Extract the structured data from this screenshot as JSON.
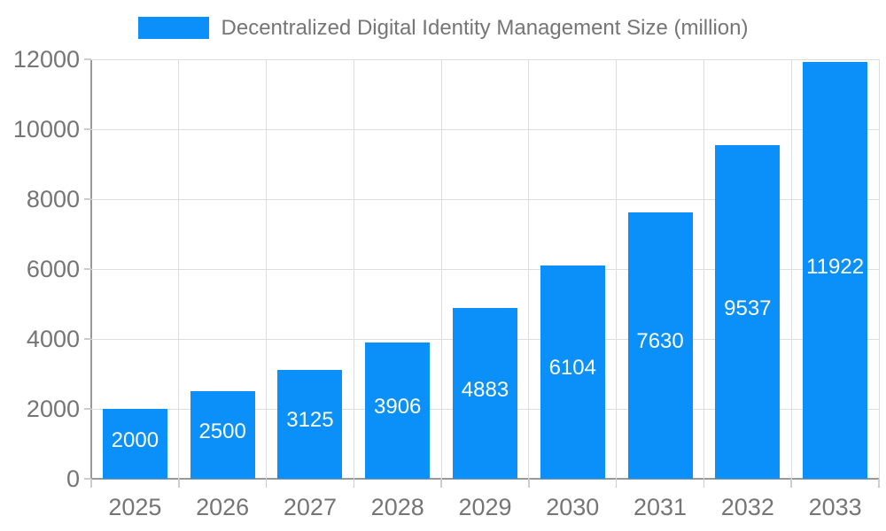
{
  "legend": {
    "label": "Decentralized Digital Identity Management Size (million)",
    "swatch_color": "#0A90F8"
  },
  "chart_data": {
    "type": "bar",
    "title": "Decentralized Digital Identity Management Size (million)",
    "categories": [
      "2025",
      "2026",
      "2027",
      "2028",
      "2029",
      "2030",
      "2031",
      "2032",
      "2033"
    ],
    "values": [
      2000,
      2500,
      3125,
      3906,
      4883,
      6104,
      7630,
      9537,
      11922
    ],
    "series": [
      {
        "name": "Decentralized Digital Identity Management Size (million)",
        "values": [
          2000,
          2500,
          3125,
          3906,
          4883,
          6104,
          7630,
          9537,
          11922
        ]
      }
    ],
    "xlabel": "",
    "ylabel": "",
    "ylim": [
      0,
      12000
    ],
    "yticks": [
      0,
      2000,
      4000,
      6000,
      8000,
      10000,
      12000
    ],
    "grid": true,
    "legend_position": "top-center",
    "value_labels": "inside-center"
  },
  "colors": {
    "bar": "#0A90F8",
    "value_label_text": "#FFFFFF",
    "gridline": "#DDDDDD",
    "axis_line": "#999999",
    "tick_mark": "#CCCCCC",
    "axis_text": "#757575",
    "background": "#FFFFFF"
  }
}
